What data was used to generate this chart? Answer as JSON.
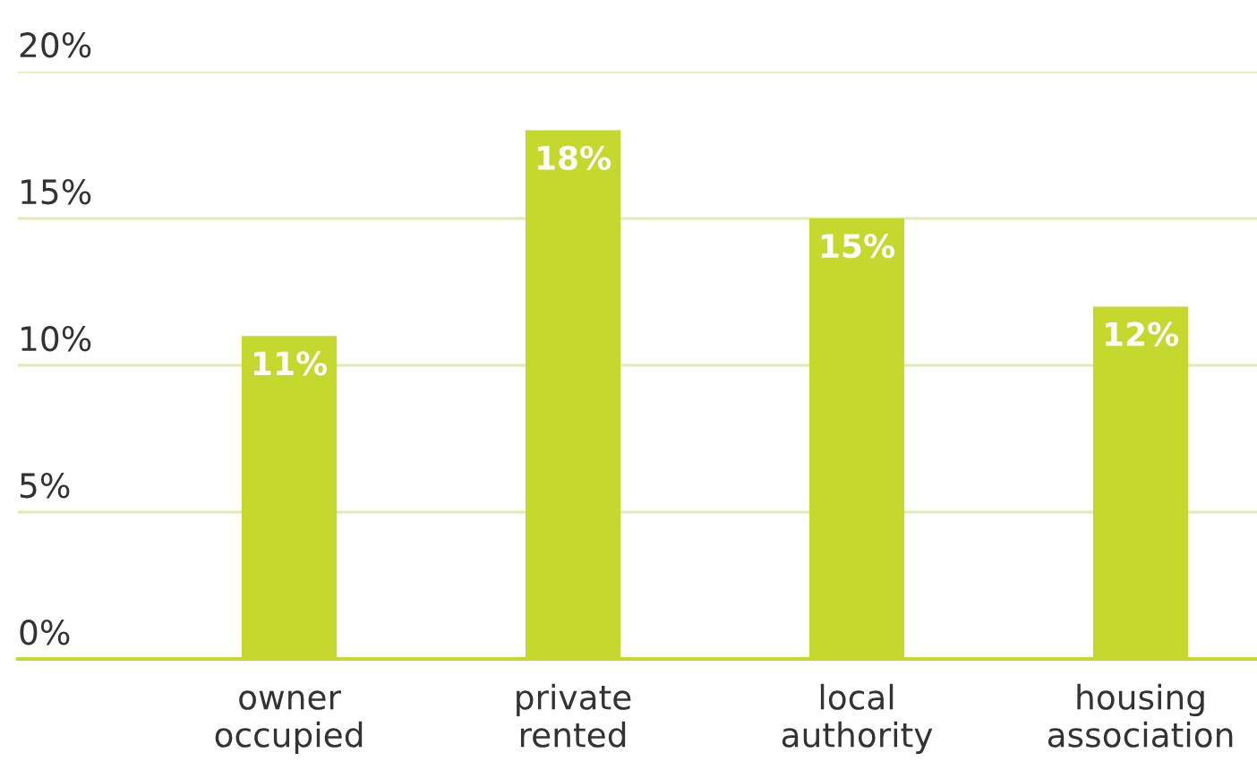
{
  "chart_data": {
    "type": "bar",
    "categories": [
      "owner\noccupied",
      "private\nrented",
      "local\nauthority",
      "housing\nassociation"
    ],
    "values": [
      11,
      18,
      15,
      12
    ],
    "value_labels": [
      "11%",
      "18%",
      "15%",
      "12%"
    ],
    "color": "#c4d82e",
    "ylim": [
      0,
      20
    ],
    "yticks": [
      {
        "value": 0,
        "label": "0%"
      },
      {
        "value": 5,
        "label": "5%"
      },
      {
        "value": 10,
        "label": "10%"
      },
      {
        "value": 15,
        "label": "15%"
      },
      {
        "value": 20,
        "label": "20%"
      }
    ],
    "grid": "y"
  }
}
